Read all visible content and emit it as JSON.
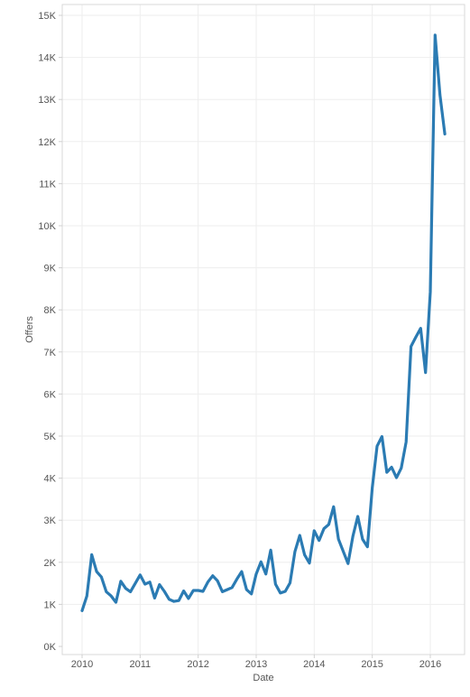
{
  "chart_data": {
    "type": "line",
    "title": "",
    "xlabel": "Date",
    "ylabel": "Offers",
    "x_unit": "year",
    "xlim": [
      2009.75,
      2016.55
    ],
    "ylim": [
      0,
      15000
    ],
    "x_ticks": [
      {
        "value": 2010,
        "label": "2010"
      },
      {
        "value": 2011,
        "label": "2011"
      },
      {
        "value": 2012,
        "label": "2012"
      },
      {
        "value": 2013,
        "label": "2013"
      },
      {
        "value": 2014,
        "label": "2014"
      },
      {
        "value": 2015,
        "label": "2015"
      },
      {
        "value": 2016,
        "label": "2016"
      }
    ],
    "y_ticks": [
      {
        "value": 0,
        "label": "0K"
      },
      {
        "value": 1000,
        "label": "1K"
      },
      {
        "value": 2000,
        "label": "2K"
      },
      {
        "value": 3000,
        "label": "3K"
      },
      {
        "value": 4000,
        "label": "4K"
      },
      {
        "value": 5000,
        "label": "5K"
      },
      {
        "value": 6000,
        "label": "6K"
      },
      {
        "value": 7000,
        "label": "7K"
      },
      {
        "value": 8000,
        "label": "8K"
      },
      {
        "value": 9000,
        "label": "9K"
      },
      {
        "value": 10000,
        "label": "10K"
      },
      {
        "value": 11000,
        "label": "11K"
      },
      {
        "value": 12000,
        "label": "12K"
      },
      {
        "value": 13000,
        "label": "13K"
      },
      {
        "value": 14000,
        "label": "14K"
      },
      {
        "value": 15000,
        "label": "15K"
      }
    ],
    "grid": true,
    "line_color": "#2b7bb3",
    "series": [
      {
        "x": [
          2010.0,
          2010.083,
          2010.167,
          2010.25,
          2010.333,
          2010.417,
          2010.5,
          2010.583,
          2010.667,
          2010.75,
          2010.833,
          2010.917,
          2011.0,
          2011.083,
          2011.167,
          2011.25,
          2011.333,
          2011.417,
          2011.5,
          2011.583,
          2011.667,
          2011.75,
          2011.833,
          2011.917,
          2012.0,
          2012.083,
          2012.167,
          2012.25,
          2012.333,
          2012.417,
          2012.5,
          2012.583,
          2012.667,
          2012.75,
          2012.833,
          2012.917,
          2013.0,
          2013.083,
          2013.167,
          2013.25,
          2013.333,
          2013.417,
          2013.5,
          2013.583,
          2013.667,
          2013.75,
          2013.833,
          2013.917,
          2014.0,
          2014.083,
          2014.167,
          2014.25,
          2014.333,
          2014.417,
          2014.5,
          2014.583,
          2014.667,
          2014.75,
          2014.833,
          2014.917,
          2015.0,
          2015.083,
          2015.167,
          2015.25,
          2015.333,
          2015.417,
          2015.5,
          2015.583,
          2015.667,
          2015.75,
          2015.833,
          2015.917,
          2016.0,
          2016.083,
          2016.167,
          2016.25
        ],
        "values": [
          850,
          1200,
          2180,
          1780,
          1650,
          1300,
          1200,
          1050,
          1550,
          1380,
          1300,
          1500,
          1700,
          1480,
          1530,
          1150,
          1470,
          1310,
          1120,
          1070,
          1090,
          1320,
          1140,
          1330,
          1330,
          1310,
          1530,
          1680,
          1560,
          1300,
          1350,
          1400,
          1600,
          1780,
          1350,
          1250,
          1720,
          2010,
          1720,
          2290,
          1480,
          1270,
          1310,
          1510,
          2250,
          2640,
          2180,
          1980,
          2750,
          2520,
          2800,
          2900,
          3320,
          2550,
          2260,
          1970,
          2620,
          3090,
          2550,
          2370,
          3780,
          4760,
          4990,
          4140,
          4260,
          4010,
          4240,
          4860,
          7130,
          7350,
          7560,
          6510,
          8430,
          14530,
          13110,
          12180
        ]
      }
    ]
  }
}
